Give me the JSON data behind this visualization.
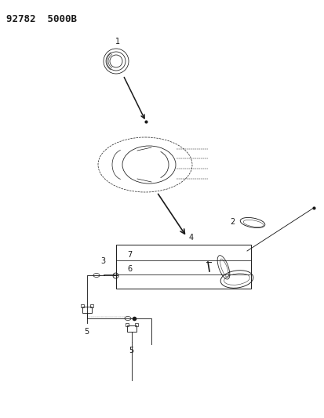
{
  "title": "92782  5000B",
  "bg_color": "#ffffff",
  "line_color": "#1a1a1a",
  "title_fontsize": 9,
  "label_fontsize": 7,
  "fig_width": 4.14,
  "fig_height": 5.33,
  "dpi": 100
}
